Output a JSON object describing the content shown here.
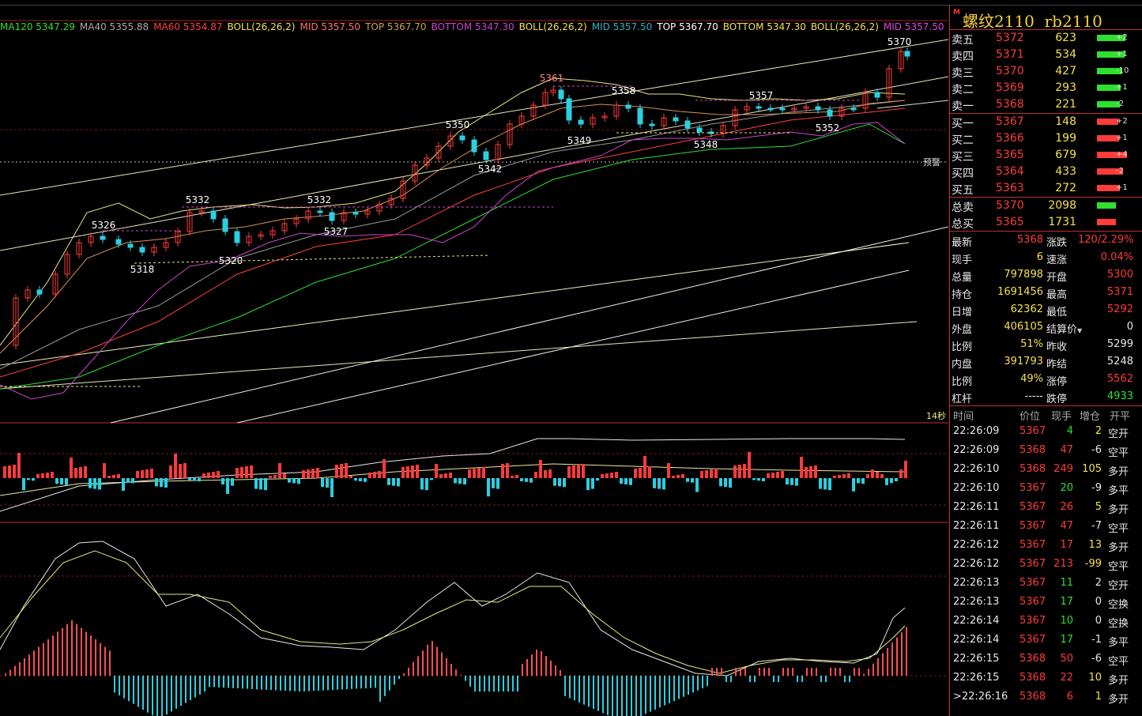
{
  "window": {
    "symbol_name": "螺纹2110",
    "symbol_code": "rb2110",
    "m_badge": "M"
  },
  "indicators": [
    {
      "text": "MA120 5347.29",
      "color": "#2fe02f"
    },
    {
      "text": "MA40 5355.88",
      "color": "#aaaaaa"
    },
    {
      "text": "MA60 5354.87",
      "color": "#ff4040"
    },
    {
      "text": "BOLL(26,26,2)",
      "color": "#f5e04a"
    },
    {
      "text": "MID 5357.50",
      "color": "#ff7070"
    },
    {
      "text": "TOP 5367.70",
      "color": "#d0a040"
    },
    {
      "text": "BOTTOM 5347.30",
      "color": "#cc44cc"
    },
    {
      "text": "BOLL(26,26,2)",
      "color": "#f5e04a"
    },
    {
      "text": "MID 5357.50",
      "color": "#2ab0c0"
    },
    {
      "text": "TOP 5367.70",
      "color": "#ffffff"
    },
    {
      "text": "BOTTOM 5347.30",
      "color": "#f5e04a"
    },
    {
      "text": "BOLL(26,26,2)",
      "color": "#f5e04a"
    },
    {
      "text": "MID 5357.50",
      "color": "#e040e0"
    }
  ],
  "price_labels": [
    "5370",
    "5361",
    "5358",
    "5357",
    "5350",
    "5349",
    "5352",
    "5348",
    "5342",
    "5332",
    "5332",
    "5326",
    "5327",
    "5320",
    "5318"
  ],
  "chart_text": {
    "warning": "预警",
    "seconds": "14秒"
  },
  "order_book": {
    "sell": [
      {
        "label": "卖五",
        "price": "5372",
        "vol": "623",
        "chg": "+2",
        "bar": 0.4
      },
      {
        "label": "卖四",
        "price": "5371",
        "vol": "534",
        "chg": "+1",
        "bar": 0.35
      },
      {
        "label": "卖三",
        "price": "5370",
        "vol": "427",
        "chg": "-10",
        "bar": 0.28
      },
      {
        "label": "卖二",
        "price": "5369",
        "vol": "293",
        "chg": "+1",
        "bar": 0.2
      },
      {
        "label": "卖一",
        "price": "5368",
        "vol": "221",
        "chg": "-2",
        "bar": 0.15
      }
    ],
    "buy": [
      {
        "label": "买一",
        "price": "5367",
        "vol": "148",
        "chg": "+2",
        "bar": 0.1
      },
      {
        "label": "买二",
        "price": "5366",
        "vol": "199",
        "chg": "+1",
        "bar": 0.13
      },
      {
        "label": "买三",
        "price": "5365",
        "vol": "679",
        "chg": "+4",
        "bar": 0.45
      },
      {
        "label": "买四",
        "price": "5364",
        "vol": "433",
        "chg": "-2",
        "bar": 0.29
      },
      {
        "label": "买五",
        "price": "5363",
        "vol": "272",
        "chg": "+1",
        "bar": 0.18
      }
    ],
    "totals": [
      {
        "label": "总卖",
        "price": "5370",
        "vol": "2098",
        "color": "#2fe02f"
      },
      {
        "label": "总买",
        "price": "5365",
        "vol": "1731",
        "color": "#ff3b3b"
      }
    ]
  },
  "quote": [
    {
      "l1": "最新",
      "v1": "5368",
      "c1": "red",
      "l2": "涨跌",
      "v2": "120/2.29%",
      "c2": "red"
    },
    {
      "l1": "现手",
      "v1": "6",
      "c1": "yellow",
      "l2": "速涨",
      "v2": "0.04%",
      "c2": "red"
    },
    {
      "l1": "总量",
      "v1": "797898",
      "c1": "yellow",
      "l2": "开盘",
      "v2": "5300",
      "c2": "red"
    },
    {
      "l1": "持仓",
      "v1": "1691456",
      "c1": "yellow",
      "l2": "最高",
      "v2": "5371",
      "c2": "red"
    },
    {
      "l1": "日增",
      "v1": "62362",
      "c1": "yellow",
      "l2": "最低",
      "v2": "5292",
      "c2": "red"
    },
    {
      "l1": "外盘",
      "v1": "406105",
      "c1": "yellow",
      "l2": "结算价",
      "v2": "0",
      "c2": "white"
    },
    {
      "l1": "比例",
      "v1": "51%",
      "c1": "yellow",
      "l2": "昨收",
      "v2": "5299",
      "c2": "white"
    },
    {
      "l1": "内盘",
      "v1": "391793",
      "c1": "yellow",
      "l2": "昨结",
      "v2": "5248",
      "c2": "white"
    },
    {
      "l1": "比例",
      "v1": "49%",
      "c1": "yellow",
      "l2": "涨停",
      "v2": "5562",
      "c2": "red"
    },
    {
      "l1": "杠杆",
      "v1": "-----",
      "c1": "white",
      "l2": "跌停",
      "v2": "4933",
      "c2": "green"
    }
  ],
  "trades_header": [
    "时间",
    "价位",
    "现手",
    "增仓",
    "开平"
  ],
  "trades": [
    {
      "time": "22:26:09",
      "price": "5367",
      "vol": "4",
      "oi": "2",
      "type": "空开",
      "pc": "red",
      "vc": "green",
      "oc": "yellow"
    },
    {
      "time": "22:26:09",
      "price": "5368",
      "vol": "47",
      "oi": "-6",
      "type": "空平",
      "pc": "red",
      "vc": "red",
      "oc": "white"
    },
    {
      "time": "22:26:10",
      "price": "5368",
      "vol": "249",
      "oi": "105",
      "type": "多开",
      "pc": "red",
      "vc": "red",
      "oc": "yellow"
    },
    {
      "time": "22:26:10",
      "price": "5367",
      "vol": "20",
      "oi": "-9",
      "type": "多平",
      "pc": "red",
      "vc": "green",
      "oc": "white"
    },
    {
      "time": "22:26:11",
      "price": "5367",
      "vol": "26",
      "oi": "5",
      "type": "多开",
      "pc": "red",
      "vc": "red",
      "oc": "yellow"
    },
    {
      "time": "22:26:11",
      "price": "5367",
      "vol": "47",
      "oi": "-7",
      "type": "空平",
      "pc": "red",
      "vc": "red",
      "oc": "white"
    },
    {
      "time": "22:26:12",
      "price": "5367",
      "vol": "17",
      "oi": "13",
      "type": "多开",
      "pc": "red",
      "vc": "red",
      "oc": "yellow"
    },
    {
      "time": "22:26:12",
      "price": "5367",
      "vol": "213",
      "oi": "-99",
      "type": "空平",
      "pc": "red",
      "vc": "red",
      "oc": "yellow"
    },
    {
      "time": "22:26:13",
      "price": "5367",
      "vol": "11",
      "oi": "2",
      "type": "空开",
      "pc": "red",
      "vc": "green",
      "oc": "white"
    },
    {
      "time": "22:26:13",
      "price": "5367",
      "vol": "17",
      "oi": "0",
      "type": "空换",
      "pc": "red",
      "vc": "green",
      "oc": "white"
    },
    {
      "time": "22:26:14",
      "price": "5367",
      "vol": "10",
      "oi": "0",
      "type": "空换",
      "pc": "red",
      "vc": "green",
      "oc": "white"
    },
    {
      "time": "22:26:14",
      "price": "5367",
      "vol": "17",
      "oi": "-1",
      "type": "多平",
      "pc": "red",
      "vc": "green",
      "oc": "white"
    },
    {
      "time": "22:26:15",
      "price": "5368",
      "vol": "50",
      "oi": "-6",
      "type": "空平",
      "pc": "red",
      "vc": "red",
      "oc": "white"
    },
    {
      "time": "22:26:15",
      "price": "5368",
      "vol": "22",
      "oi": "10",
      "type": "多开",
      "pc": "red",
      "vc": "red",
      "oc": "yellow"
    },
    {
      "time": ">22:26:16",
      "price": "5368",
      "vol": "6",
      "oi": "1",
      "type": "多开",
      "pc": "red",
      "vc": "red",
      "oc": "yellow"
    }
  ]
}
